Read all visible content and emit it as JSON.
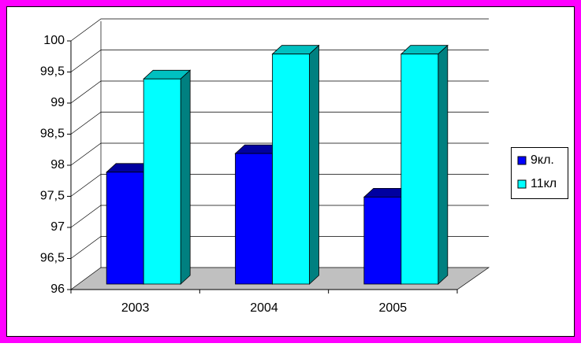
{
  "chart_data": {
    "type": "bar3d",
    "categories": [
      "2003",
      "2004",
      "2005"
    ],
    "series": [
      {
        "name": "9кл.",
        "color": "#0000ff",
        "values": [
          97.8,
          98.1,
          97.4
        ]
      },
      {
        "name": "11кл",
        "color": "#00ffff",
        "values": [
          99.3,
          99.7,
          99.7
        ]
      }
    ],
    "ylim": [
      96,
      100
    ],
    "yticks": [
      96,
      {
        "value": 96.5,
        "label": "96,5"
      },
      97,
      {
        "value": 97.5,
        "label": "97,5"
      },
      98,
      {
        "value": 98.5,
        "label": "98,5"
      },
      99,
      {
        "value": 99.5,
        "label": "99,5"
      },
      100
    ],
    "grid": true,
    "legend": "right"
  }
}
